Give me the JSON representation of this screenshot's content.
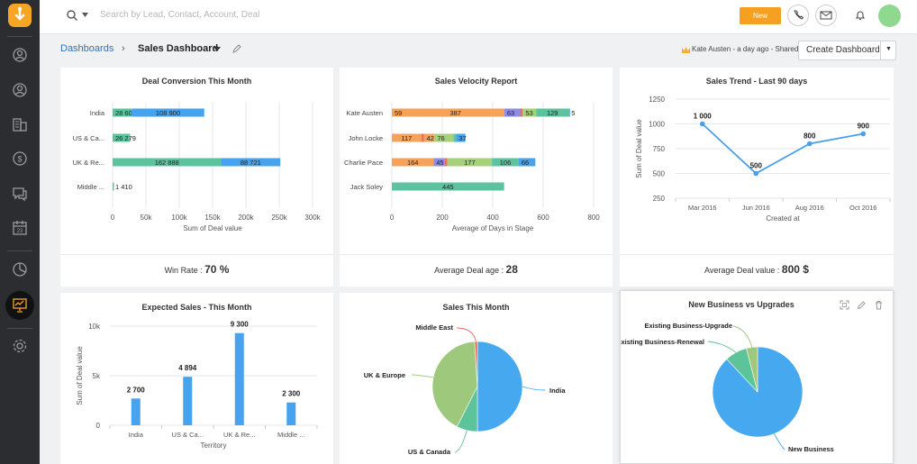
{
  "topbar": {
    "search_placeholder": "Search by Lead, Contact, Account, Deal",
    "new_label": "New"
  },
  "breadcrumb": {
    "root": "Dashboards",
    "current": "Sales Dashboard"
  },
  "header": {
    "shared_info": "Kate Austen - a day ago - Shared",
    "create_label": "Create Dashboard"
  },
  "colors": {
    "blue": "#47a3ed",
    "green": "#5bc49f",
    "orange": "#f5a35a",
    "purple": "#8e8ce8",
    "lime": "#a6d17a",
    "red": "#ed6d5e",
    "line": "#4a9fe6",
    "pie_blue": "#46a8ef",
    "pie_green": "#5cc39b",
    "pie_lime": "#9ec97d",
    "pie_red": "#ee6a5c"
  },
  "cards": {
    "deal_conversion": {
      "title": "Deal Conversion This Month",
      "stat_label": "Win Rate : ",
      "stat_value": "70 %"
    },
    "sales_velocity": {
      "title": "Sales Velocity Report",
      "stat_label": "Average Deal age : ",
      "stat_value": "28"
    },
    "sales_trend": {
      "title": "Sales Trend - Last 90 days",
      "stat_label": "Average Deal value : ",
      "stat_value": "800 $"
    },
    "expected_sales": {
      "title": "Expected Sales - This Month"
    },
    "sales_month": {
      "title": "Sales This Month"
    },
    "new_vs_upgrades": {
      "title": "New Business vs Upgrades"
    }
  },
  "chart_data": [
    {
      "id": "deal_conversion",
      "type": "bar",
      "orientation": "horizontal",
      "stacked": true,
      "categories": [
        "India",
        "US & Ca...",
        "UK & Re...",
        "Middle ..."
      ],
      "series": [
        {
          "values": [
            28600,
            26279,
            162888,
            1410
          ]
        },
        {
          "values": [
            108900,
            0,
            88721,
            0
          ]
        }
      ],
      "data_labels": [
        [
          "28 600",
          "26 279",
          "162 888",
          "1 410"
        ],
        [
          "108 900",
          "",
          "88 721",
          ""
        ]
      ],
      "xlabel": "Sum of Deal value",
      "xlim": [
        0,
        300000
      ],
      "ticks": [
        0,
        50000,
        100000,
        150000,
        200000,
        250000,
        300000
      ],
      "tick_labels": [
        "0",
        "50k",
        "100k",
        "150k",
        "200k",
        "250k",
        "300k"
      ],
      "grid": true
    },
    {
      "id": "sales_velocity",
      "type": "bar",
      "orientation": "horizontal",
      "stacked": true,
      "categories": [
        "Kate Austen",
        "John Locke",
        "Charlie Pace",
        "Jack Soley"
      ],
      "segments": [
        [
          {
            "v": 59,
            "c": "orange"
          },
          {
            "v": 387,
            "c": "orange"
          },
          {
            "v": 63,
            "c": "purple"
          },
          {
            "v": 10,
            "c": "red"
          },
          {
            "v": 53,
            "c": "lime"
          },
          {
            "v": 129,
            "c": "green"
          },
          {
            "v": 5,
            "c": "blue"
          }
        ],
        [
          {
            "v": 117,
            "c": "orange"
          },
          {
            "v": 10,
            "c": "red"
          },
          {
            "v": 42,
            "c": "orange"
          },
          {
            "v": 76,
            "c": "lime"
          },
          {
            "v": 10,
            "c": "green"
          },
          {
            "v": 37,
            "c": "blue"
          }
        ],
        [
          {
            "v": 1,
            "c": "orange"
          },
          {
            "v": 164,
            "c": "orange"
          },
          {
            "v": 45,
            "c": "purple"
          },
          {
            "v": 10,
            "c": "red"
          },
          {
            "v": 177,
            "c": "lime"
          },
          {
            "v": 106,
            "c": "green"
          },
          {
            "v": 66,
            "c": "blue"
          }
        ],
        [
          {
            "v": 0,
            "c": "orange"
          },
          {
            "v": 445,
            "c": "green"
          }
        ]
      ],
      "xlabel": "Average of Days in Stage",
      "xlim": [
        0,
        800
      ],
      "ticks": [
        0,
        200,
        400,
        600,
        800
      ],
      "grid": true
    },
    {
      "id": "sales_trend",
      "type": "line",
      "x": [
        "Mar 2016",
        "Jun 2016",
        "Aug 2016",
        "Oct 2016"
      ],
      "y": [
        1000,
        500,
        800,
        900
      ],
      "data_labels": [
        "1 000",
        "500",
        "800",
        "900"
      ],
      "xlabel": "Created at",
      "ylabel": "Sum of Deal value",
      "ylim": [
        250,
        1250
      ],
      "yticks": [
        250,
        500,
        750,
        1000,
        1250
      ],
      "grid": true
    },
    {
      "id": "expected_sales",
      "type": "bar",
      "categories": [
        "India",
        "US & Ca...",
        "UK & Re...",
        "Middle ..."
      ],
      "values": [
        2700,
        4894,
        9300,
        2300
      ],
      "data_labels": [
        "2 700",
        "4 894",
        "9 300",
        "2 300"
      ],
      "xlabel": "Territory",
      "ylabel": "Sum of Deal value",
      "ylim": [
        0,
        10000
      ],
      "yticks": [
        0,
        5000,
        10000
      ],
      "ytick_labels": [
        "0",
        "5k",
        "10k"
      ],
      "grid": true
    },
    {
      "id": "sales_month",
      "type": "pie",
      "labels": [
        "India",
        "US & Canada",
        "UK & Europe",
        "Middle East"
      ],
      "values": [
        50,
        7.5,
        41.5,
        1
      ],
      "colors": [
        "pie_blue",
        "pie_green",
        "pie_lime",
        "pie_red"
      ]
    },
    {
      "id": "new_vs_upgrades",
      "type": "pie",
      "labels": [
        "New Business",
        "Existing Business-Renewal",
        "Existing Business-Upgrade"
      ],
      "values": [
        88,
        8,
        4
      ],
      "colors": [
        "pie_blue",
        "pie_green",
        "pie_lime"
      ]
    }
  ]
}
